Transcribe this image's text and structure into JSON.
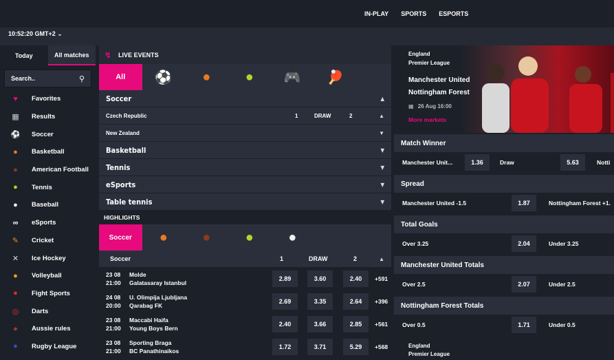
{
  "topnav": [
    "IN-PLAY",
    "SPORTS",
    "ESPORTS"
  ],
  "clock": "10:52:20 GMT+2 ⌄",
  "sidebar": {
    "tabs": [
      "Today",
      "All matches"
    ],
    "search_placeholder": "Search..",
    "items": [
      {
        "label": "Favorites",
        "icon": "♥",
        "color": "#e60a7c"
      },
      {
        "label": "Results",
        "icon": "▦",
        "color": "#cccccc"
      },
      {
        "label": "Soccer",
        "icon": "⚽",
        "color": "#ffffff"
      },
      {
        "label": "Basketball",
        "icon": "●",
        "color": "#e97a24"
      },
      {
        "label": "American Football",
        "icon": "●",
        "color": "#8a3b1e"
      },
      {
        "label": "Tennis",
        "icon": "●",
        "color": "#b4d42a"
      },
      {
        "label": "Baseball",
        "icon": "●",
        "color": "#eeeeee"
      },
      {
        "label": "eSports",
        "icon": "∞",
        "color": "#ffffff"
      },
      {
        "label": "Cricket",
        "icon": "✎",
        "color": "#e98a24"
      },
      {
        "label": "Ice Hockey",
        "icon": "✕",
        "color": "#dddddd"
      },
      {
        "label": "Volleyball",
        "icon": "●",
        "color": "#f0a020"
      },
      {
        "label": "Fight Sports",
        "icon": "●",
        "color": "#e03020"
      },
      {
        "label": "Darts",
        "icon": "◎",
        "color": "#e03030"
      },
      {
        "label": "Aussie rules",
        "icon": "●",
        "color": "#a04020"
      },
      {
        "label": "Rugby League",
        "icon": "●",
        "color": "#3050c0"
      }
    ]
  },
  "live": {
    "title": "LIVE EVENTS",
    "filter_all": "All",
    "filters": [
      {
        "icon": "⚽",
        "color": "#ffffff"
      },
      {
        "icon": "●",
        "color": "#e97a24"
      },
      {
        "icon": "●",
        "color": "#b4d42a"
      },
      {
        "icon": "🎮",
        "color": "#ffffff"
      },
      {
        "icon": "🏓",
        "color": "#e03030"
      }
    ],
    "soccer_label": "Soccer",
    "leagues": [
      {
        "name": "Czech Republic",
        "h1": "1",
        "hx": "DRAW",
        "h2": "2"
      },
      {
        "name": "New Zealand"
      }
    ],
    "sports": [
      "Basketball",
      "Tennis",
      "eSports",
      "Table tennis"
    ]
  },
  "highlights": {
    "title": "HIGHLIGHTS",
    "active": "Soccer",
    "filters": [
      {
        "icon": "●",
        "color": "#e97a24"
      },
      {
        "icon": "●",
        "color": "#8a3b1e"
      },
      {
        "icon": "●",
        "color": "#b4d42a"
      },
      {
        "icon": "●",
        "color": "#eeeeee"
      }
    ],
    "head": {
      "sport": "Soccer",
      "h1": "1",
      "hx": "DRAW",
      "h2": "2"
    },
    "matches": [
      {
        "date": "23 08",
        "time": "21:00",
        "home": "Molde",
        "away": "Galatasaray Istanbul",
        "o1": "2.89",
        "ox": "3.60",
        "o2": "2.40",
        "more": "+591"
      },
      {
        "date": "24 08",
        "time": "20:00",
        "home": "U. Olimpija Ljubljana",
        "away": "Qarabag FK",
        "o1": "2.69",
        "ox": "3.35",
        "o2": "2.64",
        "more": "+396"
      },
      {
        "date": "23 08",
        "time": "21:00",
        "home": "Maccabi Haifa",
        "away": "Young Boys Bern",
        "o1": "2.40",
        "ox": "3.66",
        "o2": "2.85",
        "more": "+561"
      },
      {
        "date": "23 08",
        "time": "21:00",
        "home": "Sporting Braga",
        "away": "BC Panathinaikos",
        "o1": "1.72",
        "ox": "3.71",
        "o2": "5.29",
        "more": "+568"
      }
    ]
  },
  "featured": {
    "country": "England",
    "league": "Premier League",
    "home": "Manchester United",
    "away": "Nottingham Forest",
    "date": "26 Aug 16:00",
    "more_markets": "More markets",
    "markets": [
      {
        "title": "Match Winner",
        "l1": "Manchester Unit...",
        "o1": "1.36",
        "l2": "Draw",
        "o2": "5.63",
        "l3": "Notti"
      },
      {
        "title": "Spread",
        "l1": "Manchester United -1.5",
        "o1": "1.87",
        "l2": "Nottingham Forest +1.",
        "o2": "",
        "l3": ""
      },
      {
        "title": "Total Goals",
        "l1": "Over 3.25",
        "o1": "2.04",
        "l2": "Under 3.25",
        "o2": "",
        "l3": ""
      },
      {
        "title": "Manchester United Totals",
        "l1": "Over 2.5",
        "o1": "2.07",
        "l2": "Under 2.5",
        "o2": "",
        "l3": ""
      },
      {
        "title": "Nottingham Forest Totals",
        "l1": "Over 0.5",
        "o1": "1.71",
        "l2": "Under 0.5",
        "o2": "",
        "l3": ""
      }
    ],
    "next_country": "England",
    "next_league": "Premier League"
  }
}
